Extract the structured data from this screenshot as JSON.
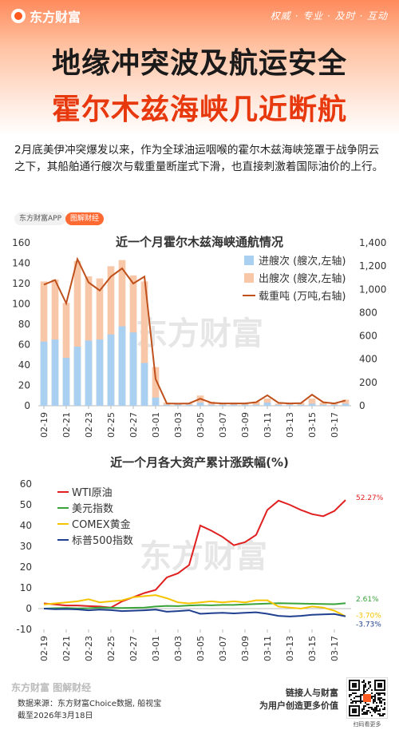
{
  "header": {
    "brand": "东方财富",
    "slogan": "权威 · 专业 · 及时 · 互动",
    "title_line1": "地缘冲突波及航运安全",
    "title_line2": "霍尔木兹海峡几近断航"
  },
  "intro": "2月底美伊冲突爆发以来，作为全球油运咽喉的霍尔木兹海峡笼罩于战争阴云之下，其船舶通行艘次与载重量断崖式下滑，也直接刺激着国际油价的上行。",
  "tags": {
    "app": "东方财富APP",
    "pic": "图解财经"
  },
  "watermark": "东方财富",
  "footer": {
    "brand": "东方财富 图解财经",
    "source": "数据来源：东方财富Choice数据, 船视宝",
    "date": "截至2026年3月18日",
    "slogan1": "链接人与财富",
    "slogan2": "为用户创造更多价值",
    "qr_caption": "扫码看更多"
  },
  "chart_data": [
    {
      "type": "bar",
      "title": "近一个月霍尔木兹海峡通航情况",
      "categories": [
        "02-19",
        "02-20",
        "02-21",
        "02-22",
        "02-23",
        "02-24",
        "02-25",
        "02-26",
        "02-27",
        "02-28",
        "03-01",
        "03-02",
        "03-03",
        "03-04",
        "03-05",
        "03-06",
        "03-07",
        "03-08",
        "03-09",
        "03-10",
        "03-11",
        "03-12",
        "03-13",
        "03-14",
        "03-15",
        "03-16",
        "03-17",
        "03-18"
      ],
      "tick_labels": [
        "02-19",
        "02-21",
        "02-23",
        "02-25",
        "02-27",
        "03-01",
        "03-03",
        "03-05",
        "03-07",
        "03-09",
        "03-11",
        "03-13",
        "03-15",
        "03-17"
      ],
      "ylim_left": [
        0,
        160
      ],
      "yticks_left": [
        0,
        20,
        40,
        60,
        80,
        100,
        120,
        140,
        160
      ],
      "ylim_right": [
        0,
        1400
      ],
      "yticks_right": [
        0,
        200,
        400,
        600,
        800,
        1000,
        1200,
        1400
      ],
      "legend_position": "top-right",
      "series": [
        {
          "name": "进艘次 (艘次,左轴)",
          "kind": "bar",
          "axis": "left",
          "color": "#a9d0f0",
          "values": [
            63,
            65,
            47,
            58,
            64,
            65,
            70,
            78,
            72,
            42,
            8,
            1,
            1,
            1,
            3,
            1,
            1,
            1,
            1,
            1,
            3,
            1,
            1,
            1,
            2,
            1,
            1,
            2
          ]
        },
        {
          "name": "出艘次 (艘次,左轴)",
          "kind": "bar",
          "axis": "left",
          "color": "#f8c7a8",
          "values": [
            122,
            124,
            101,
            142,
            127,
            125,
            137,
            143,
            128,
            122,
            38,
            3,
            2,
            2,
            10,
            4,
            2,
            3,
            2,
            4,
            7,
            2,
            2,
            3,
            7,
            3,
            2,
            6
          ]
        },
        {
          "name": "载重吨 (万吨,右轴)",
          "kind": "line",
          "axis": "right",
          "color": "#c0501b",
          "values": [
            1040,
            1080,
            880,
            1260,
            1060,
            990,
            1110,
            1180,
            1050,
            1110,
            230,
            20,
            18,
            20,
            60,
            25,
            20,
            20,
            20,
            30,
            90,
            25,
            20,
            22,
            95,
            30,
            20,
            45
          ]
        }
      ]
    },
    {
      "type": "line",
      "title": "近一个月各大资产累计涨跌幅(%)",
      "categories": [
        "02-19",
        "02-20",
        "02-21",
        "02-22",
        "02-23",
        "02-24",
        "02-25",
        "02-26",
        "02-27",
        "02-28",
        "03-01",
        "03-02",
        "03-03",
        "03-04",
        "03-05",
        "03-06",
        "03-07",
        "03-08",
        "03-09",
        "03-10",
        "03-11",
        "03-12",
        "03-13",
        "03-14",
        "03-15",
        "03-16",
        "03-17",
        "03-18"
      ],
      "tick_labels": [
        "02-19",
        "02-21",
        "02-23",
        "02-25",
        "02-27",
        "03-01",
        "03-03",
        "03-05",
        "03-07",
        "03-09",
        "03-11",
        "03-13",
        "03-15",
        "03-17"
      ],
      "ylim": [
        -10,
        60
      ],
      "yticks": [
        -10,
        0,
        10,
        20,
        30,
        40,
        50,
        60
      ],
      "legend_position": "top-left",
      "series": [
        {
          "name": "WTI原油",
          "color": "#e02020",
          "end_label": "52.27%",
          "values": [
            2.5,
            2.0,
            1.5,
            1.5,
            1.2,
            1.0,
            0.5,
            3.5,
            5.5,
            7.5,
            9.0,
            15.0,
            17.0,
            21.0,
            40.0,
            37.5,
            34.5,
            30.5,
            32.0,
            35.5,
            47.5,
            52.0,
            50.0,
            47.5,
            45.5,
            44.5,
            47.0,
            52.27
          ]
        },
        {
          "name": "美元指数",
          "color": "#3aa33a",
          "end_label": "2.61%",
          "values": [
            0,
            0.2,
            0.3,
            0.1,
            0.2,
            0.5,
            0.4,
            0.3,
            0.4,
            0.5,
            1.0,
            1.3,
            1.2,
            1.5,
            1.7,
            1.6,
            1.8,
            1.8,
            2.0,
            2.2,
            2.4,
            2.6,
            2.5,
            2.4,
            2.3,
            2.2,
            2.1,
            2.61
          ]
        },
        {
          "name": "COMEX黄金",
          "color": "#f5c400",
          "end_label": "-3.70%",
          "values": [
            2.0,
            2.5,
            3.0,
            3.5,
            4.5,
            3.0,
            3.5,
            4.0,
            5.5,
            6.0,
            6.5,
            5.0,
            3.0,
            2.5,
            3.0,
            3.5,
            3.0,
            3.5,
            3.0,
            4.0,
            4.0,
            1.0,
            0.5,
            0.0,
            1.0,
            0.5,
            -1.0,
            -3.7
          ]
        },
        {
          "name": "标普500指数",
          "color": "#1f3f8f",
          "end_label": "-3.73%",
          "values": [
            0,
            -0.3,
            -0.2,
            -0.4,
            -0.8,
            -0.5,
            -0.7,
            -1.2,
            -1.0,
            -0.8,
            -0.5,
            -1.5,
            -1.2,
            -0.8,
            -2.5,
            -2.2,
            -2.0,
            -2.3,
            -2.0,
            -1.8,
            -2.5,
            -3.5,
            -3.8,
            -3.5,
            -3.0,
            -2.8,
            -2.6,
            -3.73
          ]
        }
      ]
    }
  ]
}
